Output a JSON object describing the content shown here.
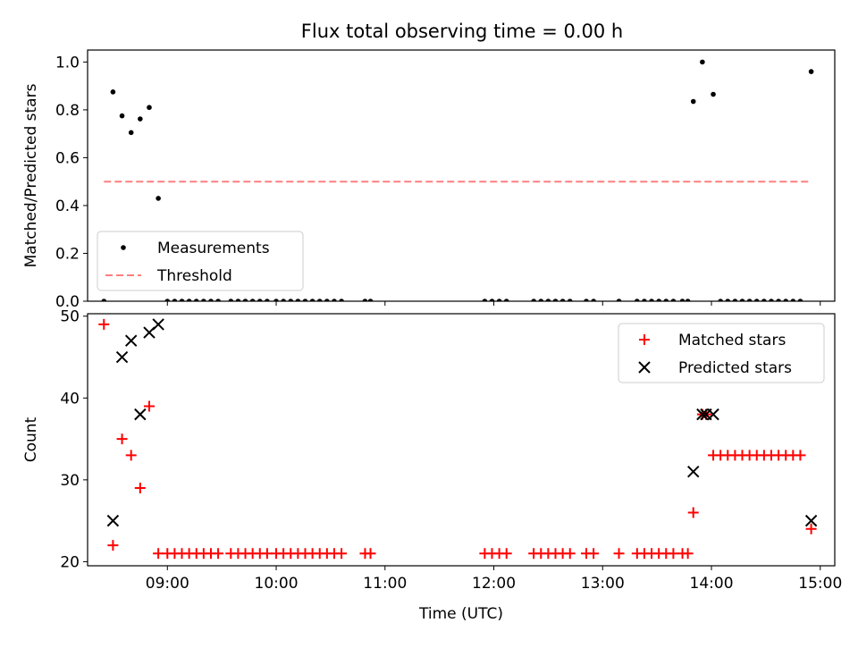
{
  "title": "Flux total observing time = 0.00 h",
  "chart_data": [
    {
      "type": "scatter",
      "title": "Flux total observing time = 0.00 h",
      "ylabel": "Matched/Predicted stars",
      "xlabel": "",
      "xlim": [
        "08:16",
        "15:08"
      ],
      "ylim": [
        0,
        1.05
      ],
      "yticks": [
        "0.0",
        "0.2",
        "0.4",
        "0.6",
        "0.8",
        "1.0"
      ],
      "xticks_labeled": false,
      "legend": {
        "placement": "lower-left",
        "entries": [
          "Measurements",
          "Threshold"
        ]
      },
      "series": [
        {
          "name": "Measurements",
          "marker": "dot",
          "color": "#000000",
          "points": [
            [
              "08:25",
              0.0
            ],
            [
              "08:30",
              0.875
            ],
            [
              "08:35",
              0.775
            ],
            [
              "08:40",
              0.705
            ],
            [
              "08:45",
              0.762
            ],
            [
              "08:50",
              0.81
            ],
            [
              "08:55",
              0.43
            ],
            [
              "09:00",
              0
            ],
            [
              "09:04",
              0
            ],
            [
              "09:08",
              0
            ],
            [
              "09:12",
              0
            ],
            [
              "09:16",
              0
            ],
            [
              "09:20",
              0
            ],
            [
              "09:24",
              0
            ],
            [
              "09:28",
              0
            ],
            [
              "09:35",
              0
            ],
            [
              "09:39",
              0
            ],
            [
              "09:43",
              0
            ],
            [
              "09:47",
              0
            ],
            [
              "09:51",
              0
            ],
            [
              "09:55",
              0
            ],
            [
              "10:00",
              0
            ],
            [
              "10:04",
              0
            ],
            [
              "10:08",
              0
            ],
            [
              "10:12",
              0
            ],
            [
              "10:16",
              0
            ],
            [
              "10:20",
              0
            ],
            [
              "10:24",
              0
            ],
            [
              "10:28",
              0
            ],
            [
              "10:32",
              0
            ],
            [
              "10:36",
              0
            ],
            [
              "10:49",
              0
            ],
            [
              "10:52",
              0
            ],
            [
              "11:55",
              0
            ],
            [
              "11:59",
              0
            ],
            [
              "12:03",
              0
            ],
            [
              "12:07",
              0
            ],
            [
              "12:22",
              0
            ],
            [
              "12:26",
              0
            ],
            [
              "12:30",
              0
            ],
            [
              "12:34",
              0
            ],
            [
              "12:38",
              0
            ],
            [
              "12:42",
              0
            ],
            [
              "12:51",
              0
            ],
            [
              "12:55",
              0
            ],
            [
              "13:09",
              0
            ],
            [
              "13:19",
              0
            ],
            [
              "13:23",
              0
            ],
            [
              "13:27",
              0
            ],
            [
              "13:31",
              0
            ],
            [
              "13:35",
              0
            ],
            [
              "13:39",
              0
            ],
            [
              "13:44",
              0
            ],
            [
              "13:47",
              0
            ],
            [
              "13:50",
              0.835
            ],
            [
              "13:55",
              1.0
            ],
            [
              "14:01",
              0.865
            ],
            [
              "14:05",
              0
            ],
            [
              "14:09",
              0
            ],
            [
              "14:13",
              0
            ],
            [
              "14:17",
              0
            ],
            [
              "14:21",
              0
            ],
            [
              "14:25",
              0
            ],
            [
              "14:29",
              0
            ],
            [
              "14:33",
              0
            ],
            [
              "14:37",
              0
            ],
            [
              "14:41",
              0
            ],
            [
              "14:45",
              0
            ],
            [
              "14:49",
              0
            ],
            [
              "14:55",
              0.96
            ]
          ]
        },
        {
          "name": "Threshold",
          "marker": "dashed-line",
          "color": "#ff7f7f",
          "points": [
            [
              "08:25",
              0.5
            ],
            [
              "14:55",
              0.5
            ]
          ]
        }
      ]
    },
    {
      "type": "scatter",
      "ylabel": "Count",
      "xlabel": "Time (UTC)",
      "xlim": [
        "08:16",
        "15:08"
      ],
      "ylim": [
        19.5,
        50.3
      ],
      "yticks": [
        "20",
        "30",
        "40",
        "50"
      ],
      "xticks": [
        "09:00",
        "10:00",
        "11:00",
        "12:00",
        "13:00",
        "14:00",
        "15:00"
      ],
      "legend": {
        "placement": "top-right",
        "entries": [
          "Matched stars",
          "Predicted stars"
        ]
      },
      "series": [
        {
          "name": "Matched stars",
          "marker": "plus",
          "color": "#ff0000",
          "points": [
            [
              "08:25",
              49
            ],
            [
              "08:30",
              22
            ],
            [
              "08:35",
              35
            ],
            [
              "08:40",
              33
            ],
            [
              "08:45",
              29
            ],
            [
              "08:50",
              39
            ],
            [
              "08:55",
              21
            ],
            [
              "09:00",
              21
            ],
            [
              "09:04",
              21
            ],
            [
              "09:08",
              21
            ],
            [
              "09:12",
              21
            ],
            [
              "09:16",
              21
            ],
            [
              "09:20",
              21
            ],
            [
              "09:24",
              21
            ],
            [
              "09:28",
              21
            ],
            [
              "09:35",
              21
            ],
            [
              "09:39",
              21
            ],
            [
              "09:43",
              21
            ],
            [
              "09:47",
              21
            ],
            [
              "09:51",
              21
            ],
            [
              "09:55",
              21
            ],
            [
              "10:00",
              21
            ],
            [
              "10:04",
              21
            ],
            [
              "10:08",
              21
            ],
            [
              "10:12",
              21
            ],
            [
              "10:16",
              21
            ],
            [
              "10:20",
              21
            ],
            [
              "10:24",
              21
            ],
            [
              "10:28",
              21
            ],
            [
              "10:32",
              21
            ],
            [
              "10:36",
              21
            ],
            [
              "10:49",
              21
            ],
            [
              "10:52",
              21
            ],
            [
              "11:55",
              21
            ],
            [
              "11:59",
              21
            ],
            [
              "12:03",
              21
            ],
            [
              "12:07",
              21
            ],
            [
              "12:22",
              21
            ],
            [
              "12:26",
              21
            ],
            [
              "12:30",
              21
            ],
            [
              "12:34",
              21
            ],
            [
              "12:38",
              21
            ],
            [
              "12:42",
              21
            ],
            [
              "12:51",
              21
            ],
            [
              "12:55",
              21
            ],
            [
              "13:09",
              21
            ],
            [
              "13:19",
              21
            ],
            [
              "13:23",
              21
            ],
            [
              "13:27",
              21
            ],
            [
              "13:31",
              21
            ],
            [
              "13:35",
              21
            ],
            [
              "13:39",
              21
            ],
            [
              "13:44",
              21
            ],
            [
              "13:47",
              21
            ],
            [
              "13:50",
              26
            ],
            [
              "13:55",
              38
            ],
            [
              "13:57",
              38
            ],
            [
              "14:01",
              33
            ],
            [
              "14:05",
              33
            ],
            [
              "14:09",
              33
            ],
            [
              "14:13",
              33
            ],
            [
              "14:17",
              33
            ],
            [
              "14:21",
              33
            ],
            [
              "14:25",
              33
            ],
            [
              "14:29",
              33
            ],
            [
              "14:33",
              33
            ],
            [
              "14:37",
              33
            ],
            [
              "14:41",
              33
            ],
            [
              "14:45",
              33
            ],
            [
              "14:49",
              33
            ],
            [
              "14:55",
              24
            ]
          ]
        },
        {
          "name": "Predicted stars",
          "marker": "x",
          "color": "#000000",
          "points": [
            [
              "08:30",
              25
            ],
            [
              "08:35",
              45
            ],
            [
              "08:40",
              47
            ],
            [
              "08:45",
              38
            ],
            [
              "08:50",
              48
            ],
            [
              "08:55",
              49
            ],
            [
              "13:50",
              31
            ],
            [
              "13:55",
              38
            ],
            [
              "13:57",
              38
            ],
            [
              "14:01",
              38
            ],
            [
              "14:55",
              25
            ]
          ]
        }
      ]
    }
  ]
}
